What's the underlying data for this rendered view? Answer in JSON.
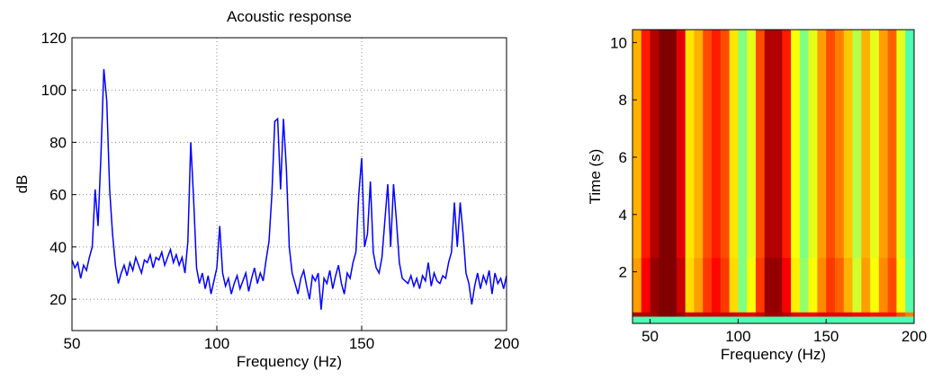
{
  "chart_data": [
    {
      "type": "line",
      "title": "Acoustic response",
      "x_label": "Frequency (Hz)",
      "y_label": "dB",
      "xlim": [
        50,
        200
      ],
      "xticks": [
        50,
        100,
        150,
        200
      ],
      "ylim": [
        8,
        120
      ],
      "yticks": [
        20,
        40,
        60,
        80,
        100,
        120
      ],
      "grid": true,
      "x": [
        50,
        51,
        52,
        53,
        54,
        55,
        56,
        57,
        58,
        59,
        60,
        61,
        62,
        63,
        64,
        65,
        66,
        67,
        68,
        69,
        70,
        71,
        72,
        73,
        74,
        75,
        76,
        77,
        78,
        79,
        80,
        81,
        82,
        83,
        84,
        85,
        86,
        87,
        88,
        89,
        90,
        91,
        92,
        93,
        94,
        95,
        96,
        97,
        98,
        99,
        100,
        101,
        102,
        103,
        104,
        105,
        106,
        107,
        108,
        109,
        110,
        111,
        112,
        113,
        114,
        115,
        116,
        117,
        118,
        119,
        120,
        121,
        122,
        123,
        124,
        125,
        126,
        127,
        128,
        129,
        130,
        131,
        132,
        133,
        134,
        135,
        136,
        137,
        138,
        139,
        140,
        141,
        142,
        143,
        144,
        145,
        146,
        147,
        148,
        149,
        150,
        151,
        152,
        153,
        154,
        155,
        156,
        157,
        158,
        159,
        160,
        161,
        162,
        163,
        164,
        165,
        166,
        167,
        168,
        169,
        170,
        171,
        172,
        173,
        174,
        175,
        176,
        177,
        178,
        179,
        180,
        181,
        182,
        183,
        184,
        185,
        186,
        187,
        188,
        189,
        190,
        191,
        192,
        193,
        194,
        195,
        196,
        197,
        198,
        199,
        200
      ],
      "series": [
        {
          "color": "#0000ff",
          "values": [
            35,
            32,
            34,
            28,
            33,
            31,
            36,
            40,
            62,
            48,
            75,
            108,
            96,
            62,
            45,
            33,
            26,
            30,
            33,
            29,
            34,
            31,
            36,
            33,
            30,
            35,
            34,
            37,
            32,
            36,
            35,
            38,
            33,
            36,
            39,
            34,
            37,
            33,
            36,
            30,
            42,
            80,
            58,
            32,
            26,
            30,
            24,
            29,
            22,
            27,
            32,
            48,
            30,
            25,
            28,
            22,
            26,
            29,
            24,
            27,
            30,
            23,
            28,
            32,
            26,
            30,
            27,
            35,
            42,
            60,
            88,
            89,
            62,
            89,
            70,
            40,
            30,
            26,
            22,
            28,
            31,
            25,
            20,
            29,
            27,
            30,
            16,
            28,
            26,
            31,
            24,
            29,
            33,
            26,
            22,
            30,
            28,
            34,
            38,
            60,
            74,
            40,
            45,
            65,
            38,
            32,
            30,
            36,
            50,
            64,
            40,
            64,
            50,
            34,
            28,
            27,
            26,
            29,
            25,
            28,
            24,
            29,
            27,
            34,
            25,
            30,
            27,
            26,
            29,
            28,
            34,
            38,
            57,
            40,
            57,
            45,
            30,
            26,
            18,
            25,
            30,
            24,
            29,
            26,
            31,
            22,
            30,
            26,
            28,
            24,
            29
          ]
        }
      ]
    },
    {
      "type": "heatmap",
      "x_label": "Frequency (Hz)",
      "y_label": "Time (s)",
      "xlim": [
        40,
        200
      ],
      "xticks": [
        50,
        100,
        150,
        200
      ],
      "ylim": [
        0.2,
        10.45
      ],
      "yticks": [
        2,
        4,
        6,
        8,
        10
      ],
      "x_edges": [
        40,
        45,
        50,
        55,
        60,
        65,
        70,
        75,
        80,
        85,
        90,
        95,
        100,
        105,
        110,
        115,
        120,
        125,
        130,
        135,
        140,
        145,
        150,
        155,
        160,
        165,
        170,
        175,
        180,
        185,
        190,
        195,
        200
      ],
      "y_edges": [
        0.2,
        0.45,
        0.6,
        2.5,
        10.45
      ],
      "values": [
        [
          0.45,
          0.45,
          0.45,
          0.45,
          0.45,
          0.45,
          0.45,
          0.45,
          0.45,
          0.45,
          0.45,
          0.45,
          0.45,
          0.45,
          0.45,
          0.45,
          0.45,
          0.45,
          0.45,
          0.45,
          0.45,
          0.45,
          0.45,
          0.45,
          0.45,
          0.45,
          0.45,
          0.45,
          0.45,
          0.45,
          0.45,
          0.45
        ],
        [
          0.95,
          0.95,
          0.97,
          1,
          1,
          0.97,
          0.93,
          0.93,
          0.93,
          0.93,
          0.93,
          0.92,
          0.9,
          0.9,
          0.92,
          0.97,
          0.97,
          0.95,
          0.9,
          0.88,
          0.88,
          0.9,
          0.9,
          0.9,
          0.9,
          0.88,
          0.88,
          0.86,
          0.86,
          0.86,
          0.8,
          0.75
        ],
        [
          0.72,
          0.88,
          0.98,
          1,
          1,
          0.93,
          0.66,
          0.72,
          0.82,
          0.87,
          0.82,
          0.66,
          0.5,
          0.62,
          0.82,
          0.98,
          0.98,
          0.88,
          0.64,
          0.52,
          0.62,
          0.74,
          0.82,
          0.78,
          0.7,
          0.58,
          0.72,
          0.62,
          0.74,
          0.8,
          0.62,
          0.46
        ],
        [
          0.7,
          0.85,
          0.95,
          1,
          1,
          0.9,
          0.65,
          0.7,
          0.8,
          0.85,
          0.8,
          0.65,
          0.5,
          0.6,
          0.8,
          0.95,
          0.95,
          0.85,
          0.62,
          0.5,
          0.6,
          0.72,
          0.8,
          0.75,
          0.68,
          0.55,
          0.7,
          0.6,
          0.72,
          0.78,
          0.6,
          0.45
        ]
      ]
    }
  ]
}
